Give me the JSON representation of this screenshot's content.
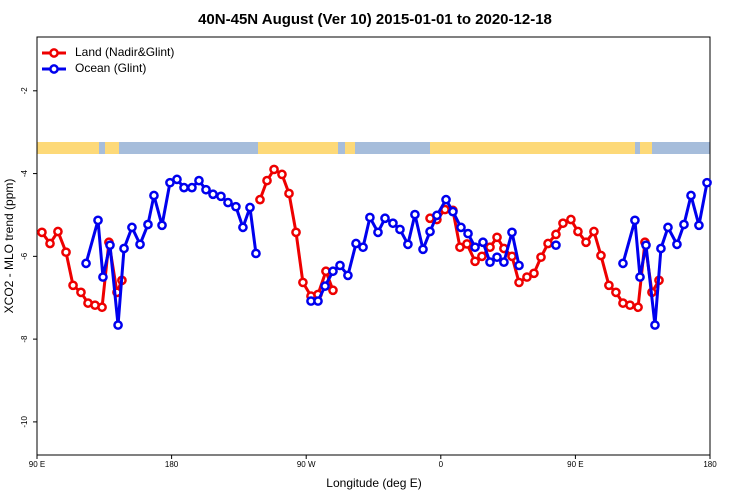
{
  "chart_data": {
    "type": "line",
    "title": "40N-45N August (Ver 10)   2015-01-01 to 2020-12-18",
    "x_label": "Longitude (deg E)",
    "y_label": "XCO2 - MLO trend (ppm)",
    "xlim": [
      90,
      540
    ],
    "ylim": [
      -10.8,
      -0.7
    ],
    "xticks": [
      {
        "value": 90,
        "label": "90 E"
      },
      180,
      {
        "value": 270,
        "label": "90 W"
      },
      {
        "value": 360,
        "label": "0"
      },
      {
        "value": 450,
        "label": "90 E"
      },
      {
        "value": 540,
        "label": "180"
      }
    ],
    "yticks": [
      -2,
      -4,
      -6,
      -8,
      -10
    ],
    "legend": "top-left",
    "series": [
      {
        "name": "Land (Nadir&Glint)",
        "color": "#ee0000",
        "x": [
          93.3,
          98.7,
          104,
          109.4,
          114.1,
          119.4,
          124.1,
          128.8,
          133.5,
          138.1,
          143.5,
          146.8,
          null,
          239.1,
          243.8,
          248.5,
          253.8,
          258.5,
          263.2,
          267.8,
          273.2,
          277.9,
          283.2,
          287.9,
          null,
          352.8,
          357.4,
          362.8,
          368.1,
          372.8,
          377.5,
          382.9,
          387.5,
          392.9,
          397.6,
          402.2,
          407.6,
          412.3,
          417.6,
          422.3,
          427,
          431.7,
          437,
          441.7,
          447,
          451.7,
          457.1,
          462.4,
          467.1,
          472.4,
          477.1,
          481.8,
          486.5,
          491.9,
          496.5,
          501.2,
          505.9
        ],
        "values": [
          -5.42,
          -5.69,
          -5.4,
          -5.9,
          -6.7,
          -6.87,
          -7.13,
          -7.18,
          -7.23,
          -5.66,
          -6.87,
          -6.58,
          null,
          -4.63,
          -4.17,
          -3.9,
          -4.02,
          -4.48,
          -5.42,
          -6.63,
          -6.96,
          -6.92,
          -6.36,
          -6.82,
          null,
          -5.08,
          -5.11,
          -4.87,
          -4.89,
          -5.78,
          -5.7,
          -6.12,
          -6.0,
          -5.78,
          -5.54,
          -5.81,
          -6.0,
          -6.63,
          -6.5,
          -6.41,
          -6.02,
          -5.69,
          -5.47,
          -5.2,
          -5.11,
          -5.4,
          -5.66,
          -5.4,
          -5.98,
          -6.7,
          -6.87,
          -7.13,
          -7.18,
          -7.23,
          -5.66,
          -6.87,
          -6.58
        ]
      },
      {
        "name": "Ocean (Glint)",
        "color": "#0000ee",
        "x": [
          122.8,
          130.8,
          134.1,
          138.8,
          144.2,
          148.2,
          153.5,
          158.9,
          164.2,
          168.2,
          173.6,
          178.9,
          183.6,
          188.3,
          193.6,
          198.3,
          203,
          207.7,
          213,
          217.7,
          223,
          227.7,
          232.4,
          236.4,
          null,
          273.2,
          277.9,
          282.6,
          287.9,
          292.6,
          297.9,
          303.3,
          308,
          312.6,
          318,
          322.7,
          328,
          332.7,
          338,
          342.7,
          348.1,
          352.8,
          357.4,
          363.5,
          368.1,
          373.5,
          378.2,
          382.9,
          388.2,
          392.9,
          397.6,
          402.2,
          407.6,
          412.3,
          null,
          437,
          null,
          481.8,
          489.8,
          493.2,
          497.2,
          503.2,
          507.2,
          511.9,
          517.9,
          522.6,
          527.3,
          532.6,
          538
        ],
        "values": [
          -6.17,
          -5.13,
          -6.5,
          -5.73,
          -7.66,
          -5.81,
          -5.3,
          -5.71,
          -5.23,
          -4.53,
          -5.25,
          -4.22,
          -4.14,
          -4.34,
          -4.34,
          -4.17,
          -4.39,
          -4.5,
          -4.55,
          -4.7,
          -4.8,
          -5.3,
          -4.82,
          -5.93,
          null,
          -7.08,
          -7.08,
          -6.72,
          -6.36,
          -6.22,
          -6.46,
          -5.69,
          -5.78,
          -5.06,
          -5.42,
          -5.08,
          -5.2,
          -5.35,
          -5.71,
          -4.99,
          -5.83,
          -5.4,
          -5.01,
          -4.63,
          -4.92,
          -5.3,
          -5.45,
          -5.78,
          -5.66,
          -6.14,
          -6.02,
          -6.14,
          -5.42,
          -6.22,
          null,
          -5.73,
          null,
          -6.17,
          -5.13,
          -6.5,
          -5.73,
          -7.66,
          -5.81,
          -5.3,
          -5.71,
          -5.23,
          -4.53,
          -5.25,
          -4.22
        ]
      }
    ]
  }
}
